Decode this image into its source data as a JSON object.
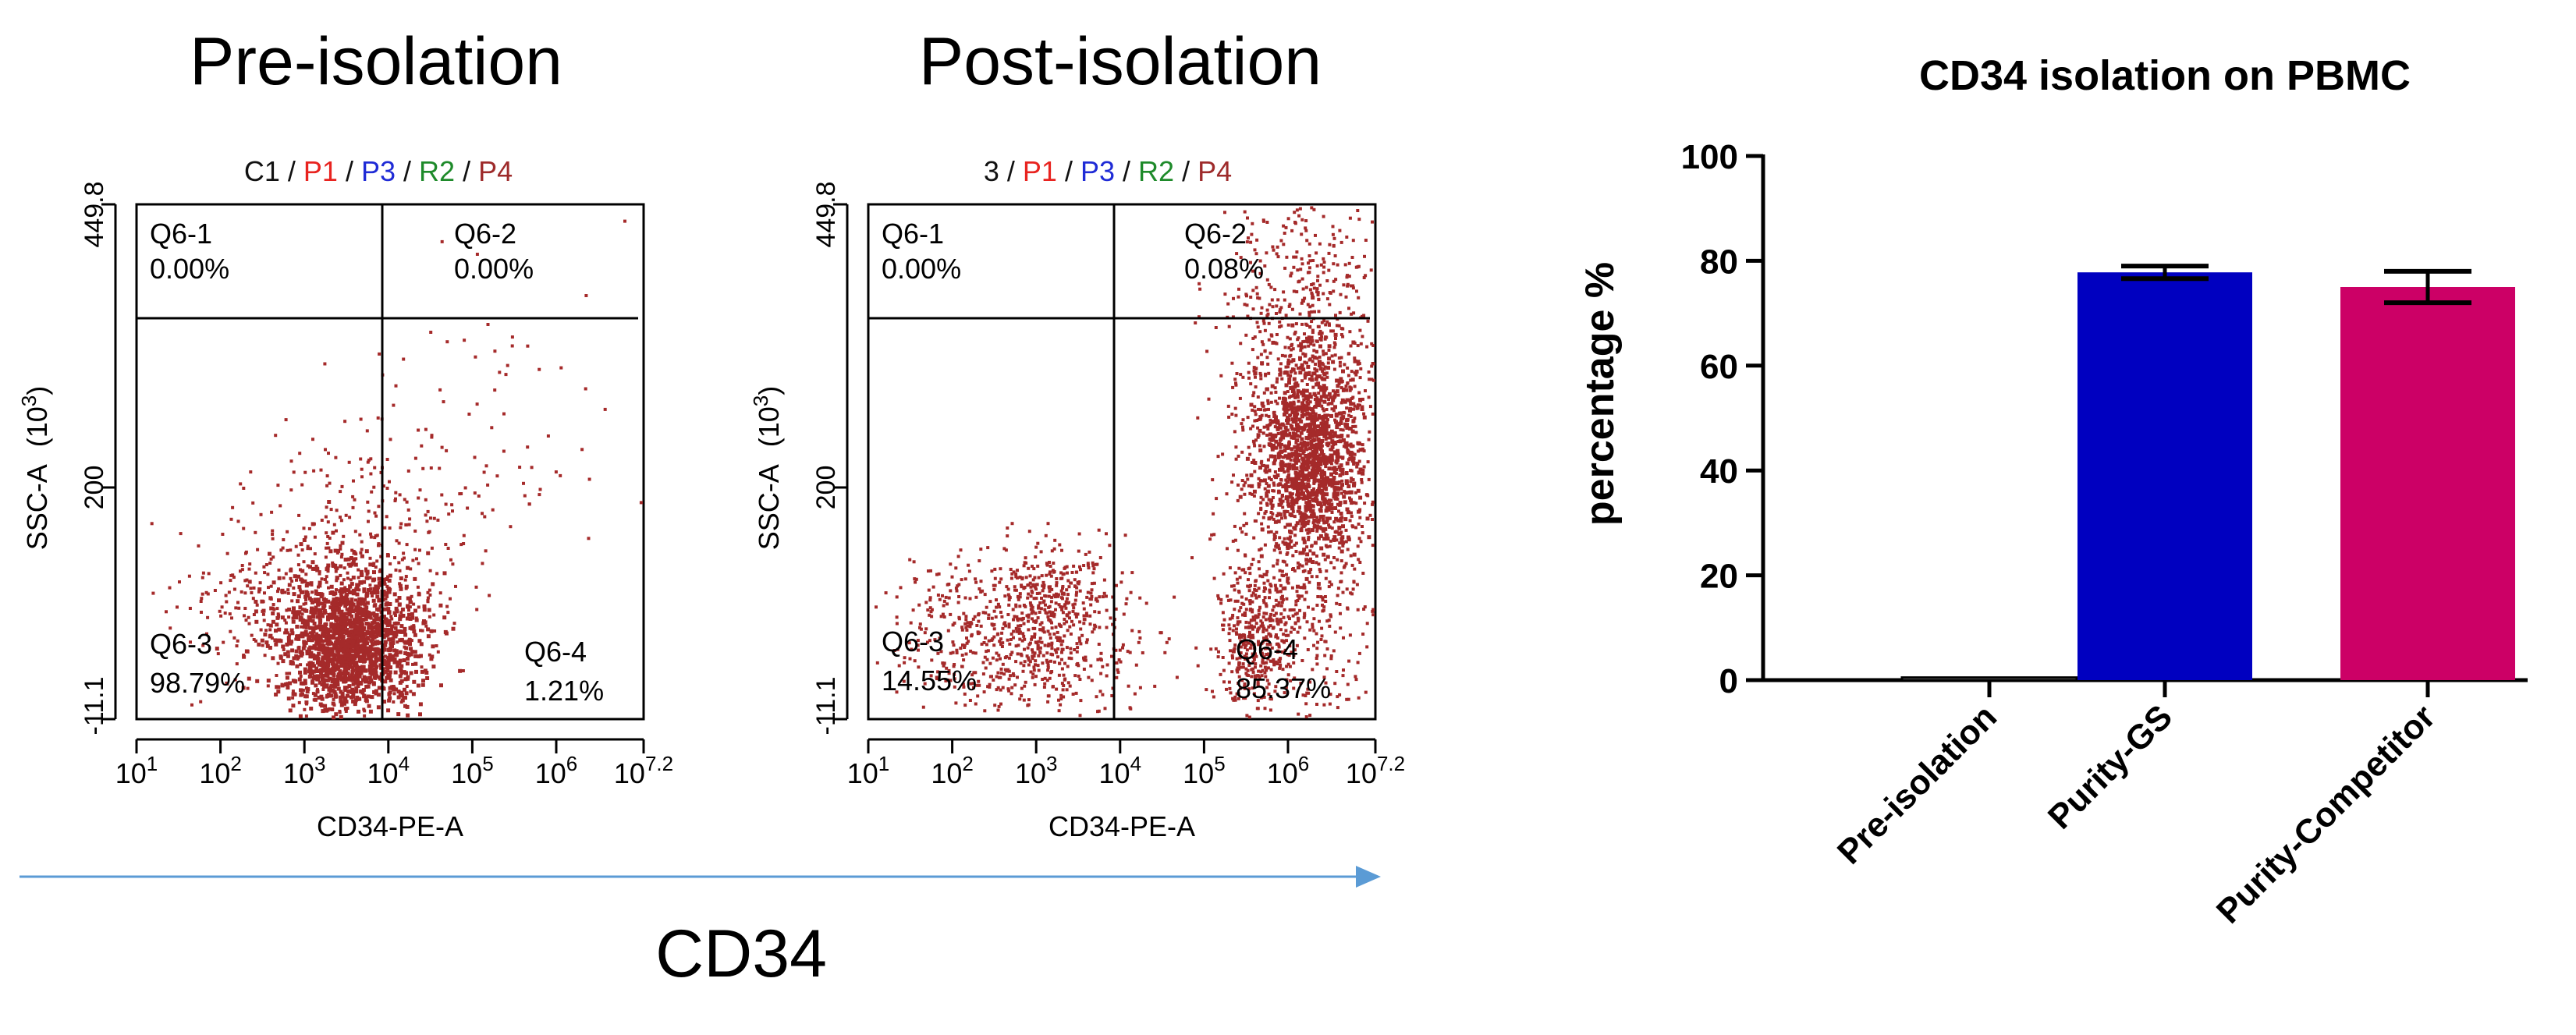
{
  "flow_panels": [
    {
      "title": "Pre-isolation",
      "gate_label_parts": [
        {
          "text": "C1",
          "color": "#111111"
        },
        {
          "text": " / ",
          "color": "#111111"
        },
        {
          "text": "P1",
          "color": "#e8231f"
        },
        {
          "text": " / ",
          "color": "#111111"
        },
        {
          "text": "P3",
          "color": "#1f2bd6"
        },
        {
          "text": " / ",
          "color": "#111111"
        },
        {
          "text": "R2",
          "color": "#1e8a2a"
        },
        {
          "text": " / ",
          "color": "#111111"
        },
        {
          "text": "P4",
          "color": "#9e2b2b"
        }
      ],
      "quadrants": {
        "q1": {
          "name": "Q6-1",
          "pct": "0.00%"
        },
        "q2": {
          "name": "Q6-2",
          "pct": "0.00%"
        },
        "q3": {
          "name": "Q6-3",
          "pct": "98.79%"
        },
        "q4": {
          "name": "Q6-4",
          "pct": "1.21%"
        }
      }
    },
    {
      "title": "Post-isolation",
      "gate_label_parts": [
        {
          "text": "3",
          "color": "#111111"
        },
        {
          "text": " / ",
          "color": "#111111"
        },
        {
          "text": "P1",
          "color": "#e8231f"
        },
        {
          "text": " / ",
          "color": "#111111"
        },
        {
          "text": "P3",
          "color": "#1f2bd6"
        },
        {
          "text": " / ",
          "color": "#111111"
        },
        {
          "text": "R2",
          "color": "#1e8a2a"
        },
        {
          "text": " / ",
          "color": "#111111"
        },
        {
          "text": "P4",
          "color": "#9e2b2b"
        }
      ],
      "quadrants": {
        "q1": {
          "name": "Q6-1",
          "pct": "0.00%"
        },
        "q2": {
          "name": "Q6-2",
          "pct": "0.08%"
        },
        "q3": {
          "name": "Q6-3",
          "pct": "14.55%"
        },
        "q4": {
          "name": "Q6-4",
          "pct": "85.37%"
        }
      }
    }
  ],
  "flow_axes": {
    "xlabel": "CD34-PE-A",
    "ylabel_main": "SSC-A",
    "ylabel_unit_base": "(10",
    "ylabel_unit_exp": "3",
    "ylabel_unit_close": ")",
    "y_ticks": [
      "449.8",
      "200",
      "-11.1"
    ],
    "x_ticks": [
      {
        "base": "10",
        "exp": "1"
      },
      {
        "base": "10",
        "exp": "2"
      },
      {
        "base": "10",
        "exp": "3"
      },
      {
        "base": "10",
        "exp": "4"
      },
      {
        "base": "10",
        "exp": "5"
      },
      {
        "base": "10",
        "exp": "6"
      },
      {
        "base": "10",
        "exp": "7.2"
      }
    ],
    "dot_color": "#a52a2a"
  },
  "arrow_label": "CD34",
  "arrow_color": "#5b9bd5",
  "chart_data": {
    "type": "bar",
    "title": "CD34 isolation on PBMC",
    "xlabel": "",
    "ylabel": "percentage %",
    "ylim": [
      0,
      100
    ],
    "y_ticks": [
      0,
      20,
      40,
      60,
      80,
      100
    ],
    "categories": [
      "Pre-isolation",
      "Purity-GS",
      "Purity-Competitor"
    ],
    "values": [
      0.5,
      77.8,
      75.0
    ],
    "error": [
      0,
      1.2,
      3.0
    ],
    "colors": [
      "#ffffff",
      "#0000c0",
      "#cc0066"
    ],
    "grid": false
  }
}
